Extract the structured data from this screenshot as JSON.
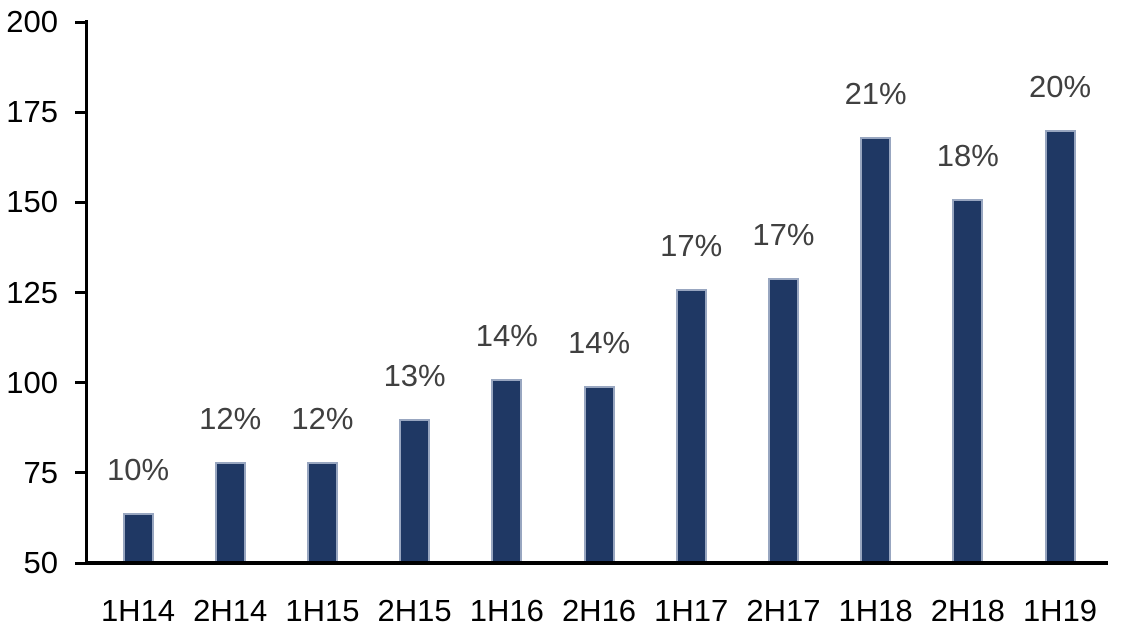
{
  "chart_data": {
    "type": "bar",
    "title": "",
    "xlabel": "",
    "ylabel": "",
    "categories": [
      "1H14",
      "2H14",
      "1H15",
      "2H15",
      "1H16",
      "2H16",
      "1H17",
      "2H17",
      "1H18",
      "2H18",
      "1H19"
    ],
    "values": [
      64,
      78,
      78,
      90,
      101,
      99,
      126,
      129,
      168,
      151,
      170
    ],
    "data_labels": [
      "10%",
      "12%",
      "12%",
      "13%",
      "14%",
      "14%",
      "17%",
      "17%",
      "21%",
      "18%",
      "20%"
    ],
    "ylim": [
      50,
      200
    ],
    "yticks": [
      50,
      75,
      100,
      125,
      150,
      175,
      200
    ],
    "grid": false,
    "legend_position": "none",
    "colors": {
      "bar_fill": "#1F3864",
      "bar_border": "#98A6C0",
      "data_label": "#404040",
      "axis_text": "#000000",
      "axis_line": "#000000",
      "background": "#FFFFFF"
    }
  }
}
